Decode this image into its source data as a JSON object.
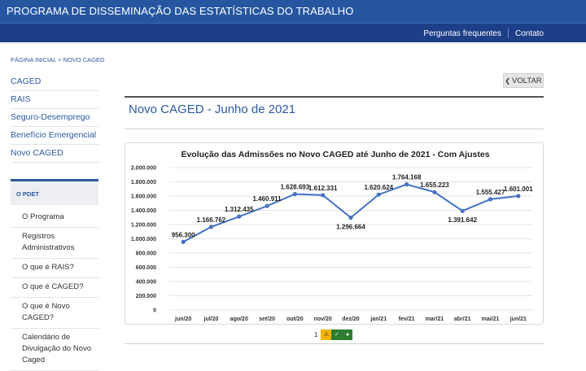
{
  "header": {
    "title": "PROGRAMA DE DISSEMINAÇÃO DAS ESTATÍSTICAS DO TRABALHO"
  },
  "nav": {
    "faq": "Perguntas frequentes",
    "contact": "Contato"
  },
  "breadcrumb": "PÁGINA INICIAL > NOVO CAGED",
  "sidebar": {
    "items": [
      {
        "label": "CAGED"
      },
      {
        "label": "RAIS"
      },
      {
        "label": "Seguro-Desemprego"
      },
      {
        "label": "Benefício Emergencial"
      },
      {
        "label": "Novo CAGED"
      }
    ],
    "section_title": "O PDET",
    "section_items": [
      {
        "label": "O Programa"
      },
      {
        "label": "Registros Administrativos"
      },
      {
        "label": "O que é RAIS?"
      },
      {
        "label": "O que é CAGED?"
      },
      {
        "label": "O que é Novo CAGED?"
      },
      {
        "label": "Calendário de Divulgação do Novo Caged"
      }
    ]
  },
  "back_button": "VOLTAR",
  "page_title": "Novo CAGED - Junho de 2021",
  "pager": {
    "page": "1"
  },
  "colors": {
    "line": "#4472c4",
    "topbar": "#2656a0",
    "navbar": "#1d3f87",
    "pager_yellow": "#f5b400",
    "pager_green": "#2e7d32"
  },
  "chart_data": {
    "type": "line",
    "title": "Evolução das Admissões no Novo CAGED até Junho de 2021 - Com Ajustes",
    "categories": [
      "jun/20",
      "jul/20",
      "ago/20",
      "set/20",
      "out/20",
      "nov/20",
      "dez/20",
      "jan/21",
      "fev/21",
      "mar/21",
      "abr/21",
      "mai/21",
      "jun/21"
    ],
    "values": [
      956300,
      1166762,
      1312435,
      1460911,
      1628693,
      1612331,
      1296664,
      1620624,
      1764168,
      1655223,
      1391642,
      1555427,
      1601001
    ],
    "labels": [
      "956.300",
      "1.166.762",
      "1.312.435",
      "1.460.911",
      "1.628.693",
      "1.612.331",
      "1.296.664",
      "1.620.624",
      "1.764.168",
      "1.655.223",
      "1.391.642",
      "1.555.427",
      "1.601.001"
    ],
    "yticks": [
      "0",
      "200.000",
      "400.000",
      "600.000",
      "800.000",
      "1.000.000",
      "1.200.000",
      "1.400.000",
      "1.600.000",
      "1.800.000",
      "2.000.000"
    ],
    "ylim": [
      0,
      2000000
    ],
    "grid": true,
    "legend": "none"
  }
}
